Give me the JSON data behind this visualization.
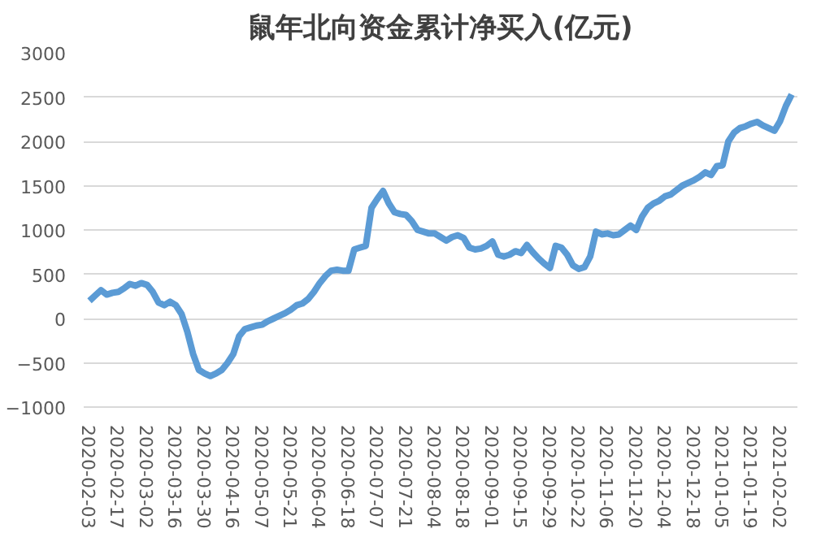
{
  "chart_data": {
    "type": "line",
    "title": "鼠年北向资金累计净买入(亿元)",
    "categories": [
      "2020-02-03",
      null,
      null,
      null,
      null,
      "2020-02-17",
      null,
      null,
      null,
      null,
      "2020-03-02",
      null,
      null,
      null,
      null,
      "2020-03-16",
      null,
      null,
      null,
      null,
      "2020-03-30",
      null,
      null,
      null,
      null,
      "2020-04-16",
      null,
      null,
      null,
      null,
      "2020-05-07",
      null,
      null,
      null,
      null,
      "2020-05-21",
      null,
      null,
      null,
      null,
      "2020-06-04",
      null,
      null,
      null,
      null,
      "2020-06-18",
      null,
      null,
      null,
      null,
      "2020-07-07",
      null,
      null,
      null,
      null,
      "2020-07-21",
      null,
      null,
      null,
      null,
      "2020-08-04",
      null,
      null,
      null,
      null,
      "2020-08-18",
      null,
      null,
      null,
      null,
      "2020-09-01",
      null,
      null,
      null,
      null,
      "2020-09-15",
      null,
      null,
      null,
      null,
      "2020-09-29",
      null,
      null,
      null,
      null,
      "2020-10-22",
      null,
      null,
      null,
      null,
      "2020-11-06",
      null,
      null,
      null,
      null,
      "2020-11-20",
      null,
      null,
      null,
      null,
      "2020-12-04",
      null,
      null,
      null,
      null,
      "2020-12-18",
      null,
      null,
      null,
      null,
      "2021-01-05",
      null,
      null,
      null,
      null,
      "2021-01-19",
      null,
      null,
      null,
      null,
      "2021-02-02",
      null,
      null
    ],
    "series": [
      {
        "color": "#5b9bd5",
        "values": [
          200,
          260,
          320,
          270,
          290,
          300,
          340,
          390,
          370,
          400,
          380,
          300,
          180,
          150,
          190,
          150,
          50,
          -150,
          -400,
          -580,
          -620,
          -650,
          -620,
          -580,
          -500,
          -400,
          -200,
          -120,
          -100,
          -80,
          -70,
          -30,
          0,
          30,
          60,
          100,
          150,
          170,
          220,
          300,
          400,
          480,
          540,
          550,
          540,
          540,
          780,
          800,
          820,
          1250,
          1350,
          1440,
          1300,
          1200,
          1180,
          1170,
          1100,
          1000,
          980,
          960,
          960,
          920,
          880,
          920,
          940,
          910,
          800,
          780,
          790,
          820,
          870,
          720,
          700,
          720,
          760,
          740,
          830,
          750,
          680,
          620,
          570,
          820,
          800,
          720,
          600,
          560,
          580,
          700,
          980,
          950,
          960,
          940,
          950,
          1000,
          1050,
          1000,
          1150,
          1250,
          1300,
          1330,
          1380,
          1400,
          1450,
          1500,
          1530,
          1560,
          1600,
          1650,
          1620,
          1720,
          1730,
          2000,
          2100,
          2150,
          2170,
          2200,
          2220,
          2180,
          2150,
          2120,
          2230,
          2400,
          2530
        ]
      }
    ],
    "ylim": [
      -1000,
      3000
    ],
    "yticks": [
      -1000,
      -500,
      0,
      500,
      1000,
      1500,
      2000,
      2500,
      3000
    ],
    "grid": "y",
    "marker": "none",
    "line_style": "solid"
  }
}
